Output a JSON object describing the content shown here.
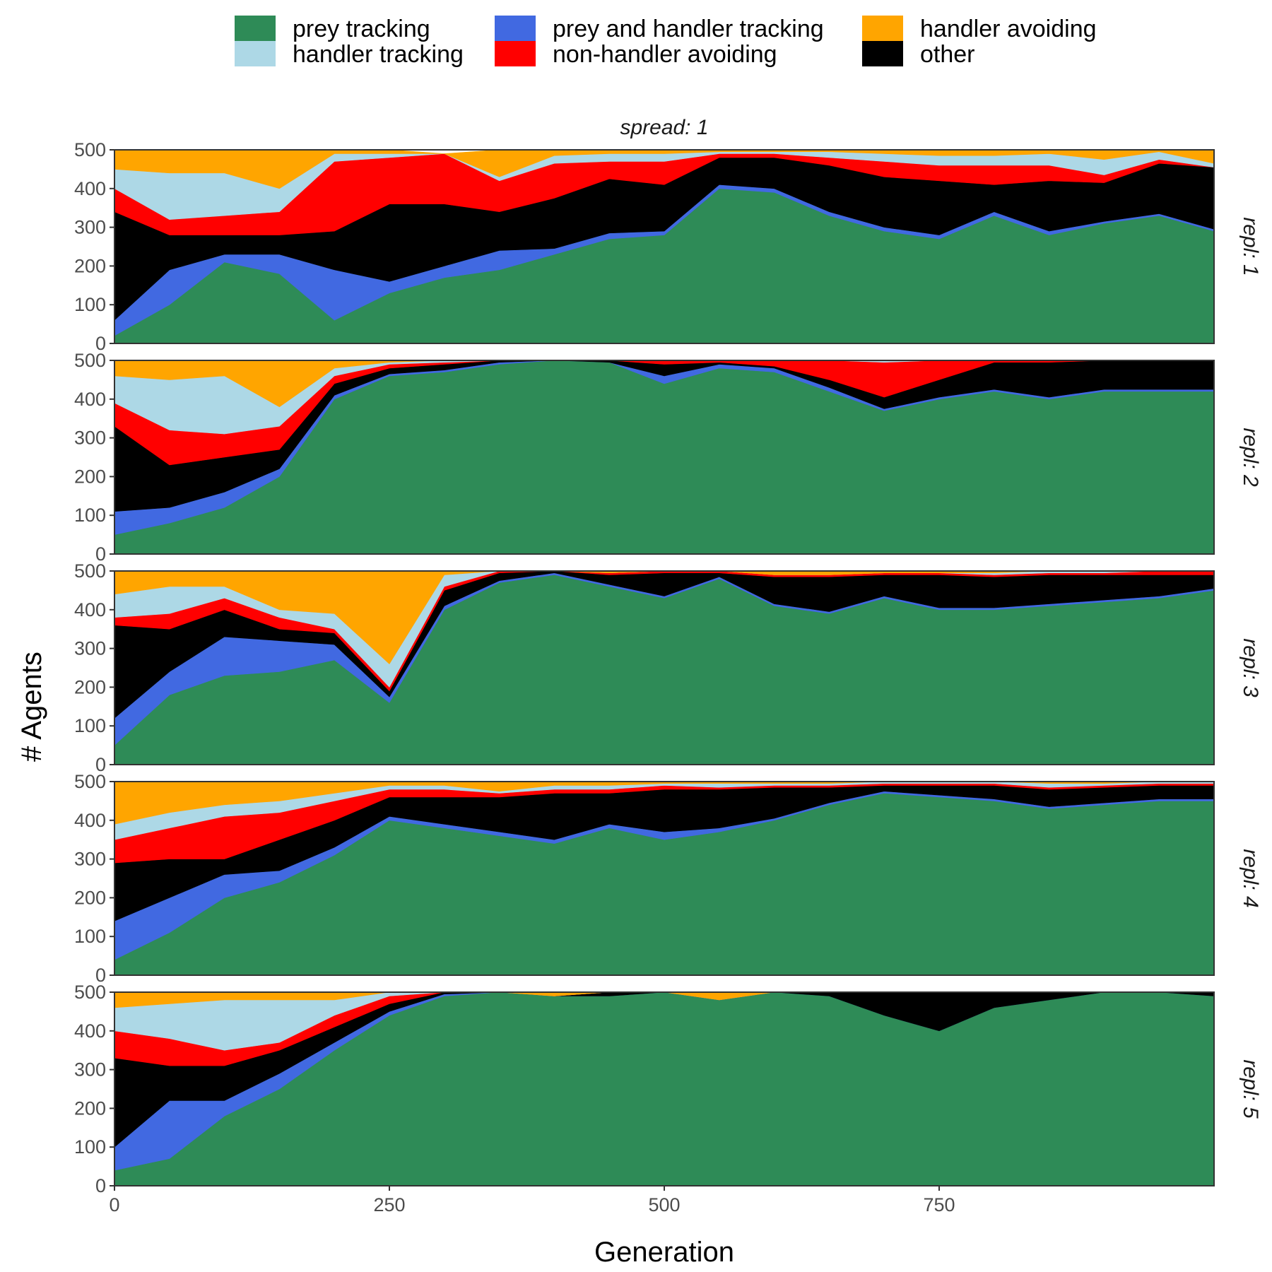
{
  "chart_data": {
    "type": "area",
    "stacked": true,
    "facet_title": "spread: 1",
    "xlabel": "Generation",
    "ylabel": "# Agents",
    "xlim": [
      0,
      1000
    ],
    "ylim": [
      0,
      500
    ],
    "x_ticks": [
      0,
      250,
      500,
      750
    ],
    "y_ticks": [
      0,
      100,
      200,
      300,
      400,
      500
    ],
    "grid": false,
    "legend_position": "top",
    "legend": [
      {
        "name": "prey tracking",
        "color": "#2e8b57"
      },
      {
        "name": "handler tracking",
        "color": "#add8e6"
      },
      {
        "name": "prey and handler tracking",
        "color": "#4169e1"
      },
      {
        "name": "non-handler avoiding",
        "color": "#ff0000"
      },
      {
        "name": "handler avoiding",
        "color": "#ffa500"
      },
      {
        "name": "other",
        "color": "#000000"
      }
    ],
    "stack_order": [
      "prey tracking",
      "prey and handler tracking",
      "other",
      "non-handler avoiding",
      "handler tracking",
      "handler avoiding"
    ],
    "x": [
      0,
      50,
      100,
      150,
      200,
      250,
      300,
      350,
      400,
      450,
      500,
      550,
      600,
      650,
      700,
      750,
      800,
      850,
      900,
      950,
      1000
    ],
    "panels": [
      {
        "label": "repl: 1",
        "series": [
          {
            "name": "prey tracking",
            "values": [
              20,
              100,
              210,
              180,
              60,
              130,
              170,
              190,
              230,
              270,
              280,
              400,
              390,
              330,
              290,
              270,
              330,
              280,
              310,
              330,
              290
            ]
          },
          {
            "name": "prey and handler tracking",
            "values": [
              40,
              90,
              20,
              50,
              130,
              30,
              30,
              50,
              15,
              15,
              10,
              10,
              10,
              10,
              10,
              10,
              10,
              10,
              5,
              5,
              5
            ]
          },
          {
            "name": "other",
            "values": [
              280,
              90,
              50,
              50,
              100,
              200,
              160,
              100,
              130,
              140,
              120,
              70,
              80,
              120,
              130,
              140,
              70,
              130,
              100,
              130,
              160
            ]
          },
          {
            "name": "non-handler avoiding",
            "values": [
              60,
              40,
              50,
              60,
              180,
              120,
              130,
              80,
              90,
              45,
              60,
              10,
              10,
              20,
              40,
              40,
              50,
              40,
              20,
              10,
              0
            ]
          },
          {
            "name": "handler tracking",
            "values": [
              50,
              120,
              110,
              60,
              20,
              10,
              0,
              10,
              20,
              20,
              20,
              5,
              5,
              15,
              20,
              25,
              25,
              30,
              40,
              20,
              10
            ]
          },
          {
            "name": "handler avoiding",
            "values": [
              50,
              60,
              60,
              100,
              10,
              10,
              0,
              70,
              15,
              10,
              10,
              5,
              5,
              5,
              10,
              15,
              15,
              10,
              25,
              5,
              35
            ]
          }
        ]
      },
      {
        "label": "repl: 2",
        "series": [
          {
            "name": "prey tracking",
            "values": [
              50,
              80,
              120,
              200,
              400,
              460,
              470,
              490,
              500,
              495,
              440,
              480,
              470,
              420,
              370,
              400,
              420,
              400,
              420,
              420,
              420
            ]
          },
          {
            "name": "prey and handler tracking",
            "values": [
              60,
              40,
              40,
              20,
              10,
              5,
              5,
              5,
              0,
              0,
              20,
              10,
              10,
              10,
              5,
              5,
              5,
              5,
              5,
              5,
              5
            ]
          },
          {
            "name": "other",
            "values": [
              220,
              110,
              90,
              50,
              30,
              15,
              15,
              5,
              0,
              5,
              30,
              5,
              5,
              20,
              30,
              45,
              70,
              90,
              75,
              75,
              75
            ]
          },
          {
            "name": "non-handler avoiding",
            "values": [
              60,
              90,
              60,
              60,
              20,
              10,
              5,
              0,
              0,
              0,
              10,
              5,
              15,
              50,
              90,
              50,
              5,
              5,
              0,
              0,
              0
            ]
          },
          {
            "name": "handler tracking",
            "values": [
              70,
              130,
              150,
              50,
              20,
              5,
              5,
              0,
              0,
              0,
              0,
              0,
              0,
              0,
              5,
              0,
              0,
              0,
              0,
              0,
              0
            ]
          },
          {
            "name": "handler avoiding",
            "values": [
              40,
              50,
              40,
              120,
              20,
              10,
              0,
              0,
              0,
              0,
              0,
              0,
              0,
              0,
              0,
              0,
              0,
              0,
              0,
              0,
              0
            ]
          }
        ]
      },
      {
        "label": "repl: 3",
        "series": [
          {
            "name": "prey tracking",
            "values": [
              50,
              180,
              230,
              240,
              270,
              160,
              400,
              470,
              490,
              460,
              430,
              480,
              410,
              390,
              430,
              400,
              400,
              410,
              420,
              430,
              450
            ]
          },
          {
            "name": "prey and handler tracking",
            "values": [
              70,
              60,
              100,
              80,
              40,
              15,
              10,
              5,
              5,
              5,
              5,
              5,
              5,
              5,
              5,
              5,
              5,
              5,
              5,
              5,
              5
            ]
          },
          {
            "name": "other",
            "values": [
              240,
              110,
              70,
              30,
              30,
              15,
              40,
              20,
              5,
              25,
              60,
              10,
              70,
              90,
              55,
              85,
              80,
              75,
              65,
              55,
              35
            ]
          },
          {
            "name": "non-handler avoiding",
            "values": [
              20,
              40,
              30,
              30,
              10,
              10,
              10,
              5,
              0,
              5,
              5,
              5,
              5,
              5,
              5,
              5,
              5,
              5,
              5,
              10,
              10
            ]
          },
          {
            "name": "handler tracking",
            "values": [
              60,
              70,
              30,
              20,
              40,
              60,
              30,
              0,
              0,
              0,
              0,
              0,
              0,
              0,
              0,
              0,
              5,
              5,
              5,
              0,
              0
            ]
          },
          {
            "name": "handler avoiding",
            "values": [
              60,
              40,
              40,
              100,
              110,
              240,
              10,
              0,
              0,
              5,
              0,
              0,
              10,
              10,
              5,
              5,
              5,
              0,
              0,
              0,
              0
            ]
          }
        ]
      },
      {
        "label": "repl: 4",
        "series": [
          {
            "name": "prey tracking",
            "values": [
              40,
              110,
              200,
              240,
              310,
              400,
              380,
              360,
              340,
              380,
              350,
              370,
              400,
              440,
              470,
              460,
              450,
              430,
              440,
              450,
              450
            ]
          },
          {
            "name": "prey and handler tracking",
            "values": [
              100,
              90,
              60,
              30,
              20,
              10,
              10,
              10,
              10,
              10,
              20,
              10,
              5,
              5,
              5,
              5,
              5,
              5,
              5,
              5,
              5
            ]
          },
          {
            "name": "other",
            "values": [
              150,
              100,
              40,
              80,
              70,
              50,
              70,
              90,
              120,
              80,
              110,
              100,
              80,
              40,
              15,
              25,
              35,
              45,
              40,
              35,
              35
            ]
          },
          {
            "name": "non-handler avoiding",
            "values": [
              60,
              80,
              110,
              70,
              50,
              20,
              20,
              10,
              10,
              10,
              10,
              5,
              5,
              5,
              5,
              5,
              5,
              5,
              5,
              5,
              5
            ]
          },
          {
            "name": "handler tracking",
            "values": [
              40,
              40,
              30,
              30,
              20,
              10,
              10,
              5,
              10,
              10,
              5,
              10,
              5,
              5,
              5,
              5,
              5,
              10,
              5,
              5,
              5
            ]
          },
          {
            "name": "handler avoiding",
            "values": [
              110,
              80,
              60,
              50,
              30,
              10,
              10,
              25,
              10,
              10,
              5,
              5,
              5,
              5,
              0,
              0,
              0,
              5,
              5,
              0,
              0
            ]
          }
        ]
      },
      {
        "label": "repl: 5",
        "series": [
          {
            "name": "prey tracking",
            "values": [
              40,
              70,
              180,
              250,
              350,
              440,
              490,
              500,
              490,
              490,
              500,
              480,
              500,
              490,
              440,
              400,
              460,
              480,
              500,
              500,
              490
            ]
          },
          {
            "name": "prey and handler tracking",
            "values": [
              60,
              150,
              40,
              40,
              20,
              10,
              5,
              0,
              0,
              0,
              0,
              0,
              0,
              0,
              0,
              0,
              0,
              0,
              0,
              0,
              0
            ]
          },
          {
            "name": "other",
            "values": [
              230,
              90,
              90,
              60,
              40,
              20,
              5,
              0,
              0,
              10,
              0,
              0,
              0,
              10,
              60,
              100,
              40,
              20,
              0,
              0,
              10
            ]
          },
          {
            "name": "non-handler avoiding",
            "values": [
              70,
              70,
              40,
              20,
              30,
              20,
              0,
              0,
              0,
              0,
              0,
              0,
              0,
              0,
              0,
              0,
              0,
              0,
              0,
              0,
              0
            ]
          },
          {
            "name": "handler tracking",
            "values": [
              60,
              90,
              130,
              110,
              40,
              10,
              0,
              0,
              0,
              0,
              0,
              0,
              0,
              0,
              0,
              0,
              0,
              0,
              0,
              0,
              0
            ]
          },
          {
            "name": "handler avoiding",
            "values": [
              40,
              30,
              20,
              20,
              20,
              0,
              0,
              0,
              10,
              0,
              0,
              20,
              0,
              0,
              0,
              0,
              0,
              0,
              0,
              0,
              0
            ]
          }
        ]
      }
    ]
  }
}
